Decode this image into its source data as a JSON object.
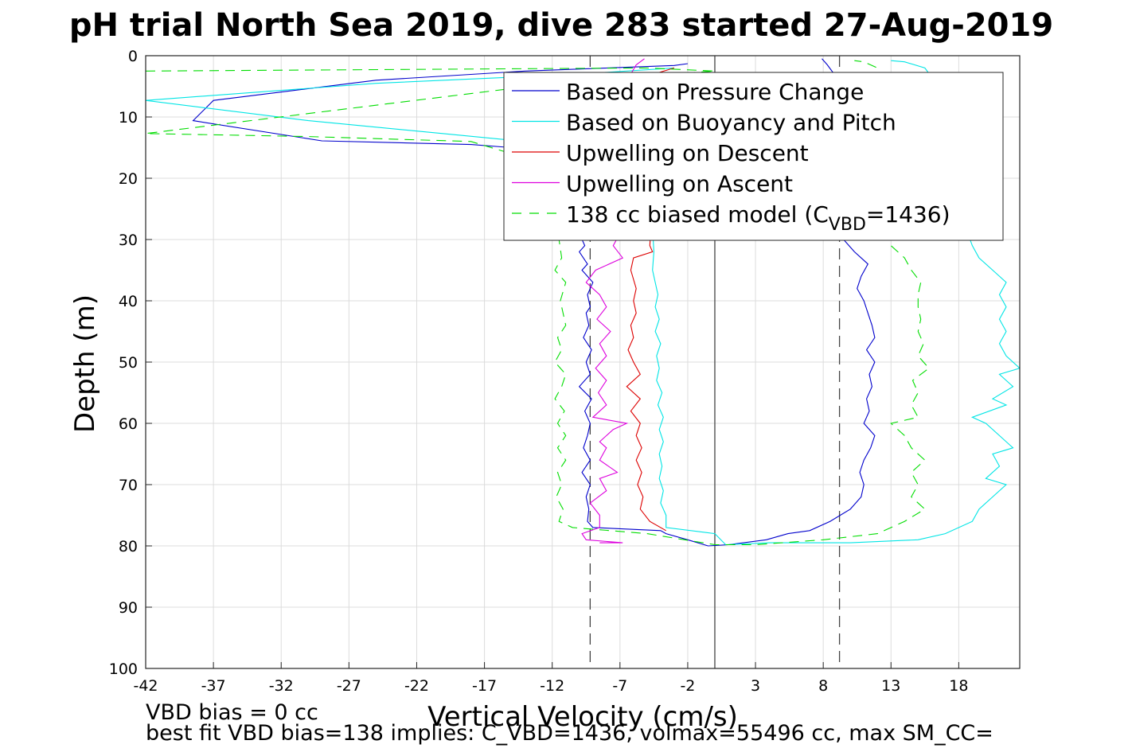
{
  "chart_data": {
    "type": "line",
    "title": "pH trial North Sea 2019, dive 283 started 27-Aug-2019",
    "xlabel": "Vertical Velocity (cm/s)",
    "ylabel": "Depth (m)",
    "xlim": [
      -42,
      22.5
    ],
    "ylim": [
      100,
      0
    ],
    "y_reversed": true,
    "grid": true,
    "x_ticks": [
      -42,
      -37,
      -32,
      -27,
      -22,
      -17,
      -12,
      -7,
      -2,
      3,
      8,
      13,
      18
    ],
    "y_ticks": [
      0,
      10,
      20,
      30,
      40,
      50,
      60,
      70,
      80,
      90,
      100
    ],
    "legend": {
      "placement": "top-right",
      "entries": [
        {
          "label": "Based on Pressure Change",
          "color": "#0000cc",
          "style": "solid"
        },
        {
          "label": "Based on Buoyancy and Pitch",
          "color": "#00e5e5",
          "style": "solid"
        },
        {
          "label": "Upwelling on Descent",
          "color": "#dd0000",
          "style": "solid"
        },
        {
          "label": "Upwelling on Ascent",
          "color": "#dd00dd",
          "style": "solid"
        },
        {
          "label_prefix": "138 cc biased model (C",
          "label_sub": "VBD",
          "label_suffix": "=1436)",
          "color": "#00dd00",
          "style": "dashed"
        }
      ]
    },
    "reference_lines": [
      {
        "x": -9.2,
        "style": "dashed",
        "color": "#444444"
      },
      {
        "x": 0,
        "style": "solid",
        "color": "#444444"
      },
      {
        "x": 9.2,
        "style": "dashed",
        "color": "#444444"
      }
    ],
    "series": [
      {
        "name": "Based on Pressure Change",
        "color": "#0000cc",
        "dash": false,
        "points": [
          [
            -2,
            1.3
          ],
          [
            -3,
            1.6
          ],
          [
            -14,
            2.5
          ],
          [
            -25,
            4
          ],
          [
            -37,
            7.3
          ],
          [
            -38.5,
            10.6
          ],
          [
            -29,
            13.9
          ],
          [
            -18,
            14.5
          ],
          [
            -15,
            15
          ],
          [
            -12,
            20
          ],
          [
            -10,
            29
          ],
          [
            -9.6,
            31
          ],
          [
            -10,
            32
          ],
          [
            -9.4,
            34
          ],
          [
            -9.8,
            35
          ],
          [
            -9,
            37
          ],
          [
            -9.4,
            39
          ],
          [
            -9.2,
            41
          ],
          [
            -9.5,
            42
          ],
          [
            -9.3,
            44
          ],
          [
            -9.7,
            46
          ],
          [
            -9.1,
            48
          ],
          [
            -9.5,
            50
          ],
          [
            -9.2,
            52
          ],
          [
            -10,
            54
          ],
          [
            -9.1,
            56
          ],
          [
            -9.6,
            58
          ],
          [
            -9.2,
            60
          ],
          [
            -9.4,
            62
          ],
          [
            -9.7,
            64
          ],
          [
            -9.2,
            66
          ],
          [
            -9.8,
            68
          ],
          [
            -9.2,
            70
          ],
          [
            -9.5,
            72
          ],
          [
            -9.3,
            74
          ],
          [
            -9.4,
            76
          ],
          [
            -9,
            77
          ],
          [
            -4,
            77.5
          ],
          [
            -3.6,
            78
          ],
          [
            -2,
            79
          ],
          [
            -0.5,
            80
          ],
          [
            1,
            79.8
          ],
          [
            3.8,
            79
          ],
          [
            5.4,
            78
          ],
          [
            7,
            77.5
          ],
          [
            8.5,
            76
          ],
          [
            10,
            74
          ],
          [
            10.8,
            72
          ],
          [
            11,
            70
          ],
          [
            10.7,
            68
          ],
          [
            11,
            66
          ],
          [
            11.5,
            64
          ],
          [
            11.8,
            62
          ],
          [
            11,
            60
          ],
          [
            11.4,
            58
          ],
          [
            11.2,
            56
          ],
          [
            11.6,
            54
          ],
          [
            11.4,
            52
          ],
          [
            11.8,
            50
          ],
          [
            11.2,
            48
          ],
          [
            11.8,
            46
          ],
          [
            11.6,
            44
          ],
          [
            11.3,
            42
          ],
          [
            11,
            40
          ],
          [
            10.5,
            38
          ],
          [
            10.8,
            36
          ],
          [
            11.3,
            34
          ],
          [
            10.3,
            32
          ],
          [
            9.5,
            30
          ],
          [
            9.2,
            25
          ],
          [
            9.1,
            20
          ],
          [
            9,
            15
          ],
          [
            9,
            10
          ],
          [
            8.8,
            5
          ],
          [
            8.8,
            3
          ],
          [
            8.3,
            1.5
          ],
          [
            7.9,
            0.5
          ]
        ]
      },
      {
        "name": "Based on Buoyancy and Pitch",
        "color": "#00e5e5",
        "dash": false,
        "points": [
          [
            -3,
            2
          ],
          [
            -10,
            3
          ],
          [
            -25,
            4.5
          ],
          [
            -42,
            7.3
          ],
          [
            -30,
            10.6
          ],
          [
            -21,
            12.5
          ],
          [
            -14,
            14
          ],
          [
            -11,
            15
          ],
          [
            -6,
            17
          ],
          [
            -5,
            22
          ],
          [
            -4.6,
            28
          ],
          [
            -4.5,
            32
          ],
          [
            -4.6,
            35
          ],
          [
            -4.4,
            37
          ],
          [
            -4.2,
            39
          ],
          [
            -4.4,
            41
          ],
          [
            -4.1,
            43
          ],
          [
            -4.4,
            45
          ],
          [
            -4.0,
            47
          ],
          [
            -4.3,
            49
          ],
          [
            -4.1,
            51
          ],
          [
            -4.3,
            53
          ],
          [
            -3.9,
            55
          ],
          [
            -4.2,
            57
          ],
          [
            -3.8,
            59
          ],
          [
            -4.1,
            61
          ],
          [
            -3.8,
            63
          ],
          [
            -4.1,
            65
          ],
          [
            -3.9,
            67
          ],
          [
            -4.1,
            69
          ],
          [
            -3.8,
            71
          ],
          [
            -4.0,
            73
          ],
          [
            -3.6,
            75
          ],
          [
            -3.6,
            77
          ],
          [
            0,
            78
          ],
          [
            0.8,
            79.8
          ],
          [
            4,
            79.5
          ],
          [
            10,
            79.5
          ],
          [
            15,
            79
          ],
          [
            17,
            78
          ],
          [
            19,
            76
          ],
          [
            19.5,
            74
          ],
          [
            20.5,
            72
          ],
          [
            21.5,
            70
          ],
          [
            20,
            69
          ],
          [
            21,
            67
          ],
          [
            20.5,
            65
          ],
          [
            22,
            64
          ],
          [
            21,
            62
          ],
          [
            20,
            60
          ],
          [
            19,
            59
          ],
          [
            21.5,
            57
          ],
          [
            20.5,
            56
          ],
          [
            22,
            54
          ],
          [
            21,
            52
          ],
          [
            22.5,
            51
          ],
          [
            21.5,
            49
          ],
          [
            21,
            47
          ],
          [
            21.5,
            45
          ],
          [
            21,
            43
          ],
          [
            21.5,
            41
          ],
          [
            21,
            39
          ],
          [
            21.5,
            37
          ],
          [
            20.5,
            35
          ],
          [
            19.5,
            33
          ],
          [
            19,
            31
          ],
          [
            18.5,
            28
          ],
          [
            18.5,
            25
          ],
          [
            18.5,
            20
          ],
          [
            18,
            15
          ],
          [
            17.5,
            10
          ],
          [
            16.5,
            5
          ],
          [
            15.5,
            2
          ],
          [
            14,
            1
          ],
          [
            13,
            0.8
          ]
        ]
      },
      {
        "name": "Upwelling on Descent",
        "color": "#dd0000",
        "dash": false,
        "points": [
          [
            -3,
            2
          ],
          [
            -4.5,
            3
          ],
          [
            -5,
            4
          ],
          [
            -4.8,
            10
          ],
          [
            -4.5,
            20
          ],
          [
            -4.8,
            31
          ],
          [
            -4.6,
            32
          ],
          [
            -6,
            33
          ],
          [
            -6.2,
            35
          ],
          [
            -5.8,
            38
          ],
          [
            -6,
            40
          ],
          [
            -5.8,
            42
          ],
          [
            -6.2,
            44
          ],
          [
            -6.0,
            46
          ],
          [
            -6.4,
            48
          ],
          [
            -6.0,
            50
          ],
          [
            -5.5,
            52
          ],
          [
            -6.5,
            54
          ],
          [
            -5.5,
            56
          ],
          [
            -6.2,
            58
          ],
          [
            -5.5,
            60
          ],
          [
            -5.8,
            62
          ],
          [
            -5.4,
            64
          ],
          [
            -5.8,
            66
          ],
          [
            -5.4,
            68
          ],
          [
            -5.7,
            70
          ],
          [
            -5.3,
            72
          ],
          [
            -5.5,
            74
          ],
          [
            -4.8,
            76
          ],
          [
            -3.6,
            77.5
          ]
        ]
      },
      {
        "name": "Upwelling on Ascent",
        "color": "#dd00dd",
        "dash": false,
        "points": [
          [
            -8.5,
            79.5
          ],
          [
            -6.8,
            79.5
          ],
          [
            -9.5,
            79
          ],
          [
            -9.8,
            78
          ],
          [
            -8.5,
            77
          ],
          [
            -8.5,
            75
          ],
          [
            -9.2,
            73
          ],
          [
            -8.0,
            71
          ],
          [
            -8.5,
            69
          ],
          [
            -7.2,
            68
          ],
          [
            -8.5,
            66
          ],
          [
            -8.0,
            64
          ],
          [
            -8.5,
            63
          ],
          [
            -7.5,
            61
          ],
          [
            -6.5,
            60
          ],
          [
            -9.0,
            59
          ],
          [
            -8.0,
            57
          ],
          [
            -8.6,
            55
          ],
          [
            -8.0,
            53
          ],
          [
            -8.8,
            51
          ],
          [
            -8.0,
            49
          ],
          [
            -8.5,
            47
          ],
          [
            -7.7,
            45
          ],
          [
            -8.7,
            43
          ],
          [
            -8.0,
            41
          ],
          [
            -8.5,
            39
          ],
          [
            -9.5,
            37
          ],
          [
            -8.8,
            35
          ],
          [
            -6.8,
            33
          ],
          [
            -7.5,
            31
          ],
          [
            -7.0,
            29
          ],
          [
            -6.6,
            25
          ],
          [
            -6.5,
            20
          ],
          [
            -6.3,
            15
          ],
          [
            -6.3,
            10
          ],
          [
            -6.5,
            5
          ],
          [
            -6.2,
            3
          ],
          [
            -5.8,
            1.5
          ],
          [
            -5.2,
            0.5
          ]
        ]
      },
      {
        "name": "138 cc biased model (CVBD=1436)",
        "color": "#00dd00",
        "dash": true,
        "points": [
          [
            -42,
            2.5
          ],
          [
            -5,
            2
          ],
          [
            0,
            2.5
          ],
          [
            -10,
            4
          ],
          [
            -42,
            12.7
          ],
          [
            -30,
            13.2
          ],
          [
            -18,
            14
          ],
          [
            -12,
            18
          ],
          [
            -11,
            25
          ],
          [
            -11.5,
            30
          ],
          [
            -11.3,
            33
          ],
          [
            -11.8,
            35
          ],
          [
            -11.0,
            37
          ],
          [
            -11.4,
            40
          ],
          [
            -11.2,
            42
          ],
          [
            -11.0,
            44
          ],
          [
            -11.6,
            46
          ],
          [
            -11.3,
            48
          ],
          [
            -11.8,
            50
          ],
          [
            -11.0,
            52
          ],
          [
            -11.3,
            54
          ],
          [
            -11.8,
            56
          ],
          [
            -11.1,
            58
          ],
          [
            -11.6,
            60
          ],
          [
            -11.0,
            62
          ],
          [
            -11.6,
            64
          ],
          [
            -11.0,
            66
          ],
          [
            -11.6,
            68
          ],
          [
            -11.3,
            70
          ],
          [
            -11.7,
            72
          ],
          [
            -11.2,
            74
          ],
          [
            -11.5,
            76
          ],
          [
            -10.5,
            77
          ],
          [
            -5,
            78
          ],
          [
            0,
            79.8
          ],
          [
            3,
            79.8
          ],
          [
            8,
            79
          ],
          [
            12,
            78
          ],
          [
            14,
            76
          ],
          [
            15.5,
            74
          ],
          [
            14.5,
            72
          ],
          [
            15,
            70
          ],
          [
            14.5,
            68
          ],
          [
            15.5,
            66
          ],
          [
            14.5,
            64
          ],
          [
            14,
            62
          ],
          [
            13,
            60
          ],
          [
            15,
            59
          ],
          [
            14.5,
            57
          ],
          [
            15,
            55
          ],
          [
            14.6,
            53
          ],
          [
            15.8,
            51
          ],
          [
            15,
            49
          ],
          [
            15.4,
            47
          ],
          [
            15,
            45
          ],
          [
            15.2,
            43
          ],
          [
            15,
            41
          ],
          [
            15,
            39
          ],
          [
            15.2,
            37
          ],
          [
            14.5,
            35
          ],
          [
            14,
            33
          ],
          [
            13,
            31
          ],
          [
            12.5,
            28
          ],
          [
            12.5,
            20
          ],
          [
            12.5,
            10
          ],
          [
            12.4,
            5
          ],
          [
            12,
            2
          ],
          [
            11,
            1
          ],
          [
            10.3,
            0.8
          ]
        ]
      }
    ]
  },
  "footer": {
    "line1": "VBD bias = 0 cc",
    "line2": "best fit VBD bias=138 implies: C_VBD=1436, volmax=55496 cc, max SM_CC="
  }
}
